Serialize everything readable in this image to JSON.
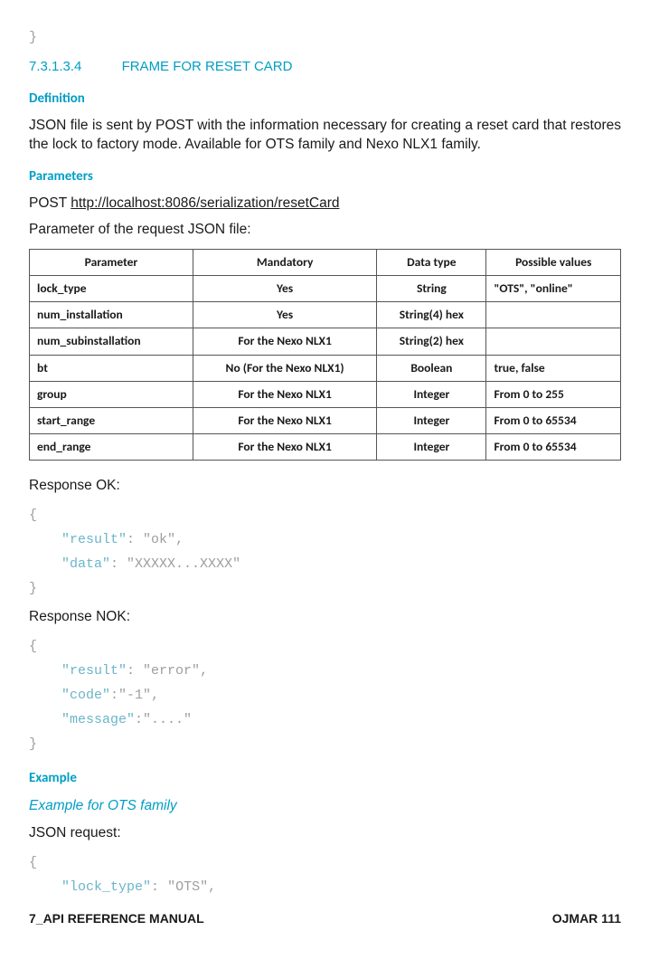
{
  "topBrace": "}",
  "section": {
    "num": "7.3.1.3.4",
    "title": "FRAME FOR RESET CARD"
  },
  "sub": {
    "definition": "Definition",
    "parameters": "Parameters",
    "example": "Example"
  },
  "definitionText": "JSON file is sent by POST with the information necessary for creating a reset card that restores the lock to factory mode. Available for OTS family and Nexo NLX1 family.",
  "postLabel": "POST ",
  "postUrl": "http://localhost:8086/serialization/resetCard",
  "paramIntro": "Parameter of the request JSON file:",
  "table": {
    "headers": [
      "Parameter",
      "Mandatory",
      "Data type",
      "Possible values"
    ],
    "rows": [
      [
        "lock_type",
        "Yes",
        "String",
        "\"OTS\", \"online\""
      ],
      [
        "num_installation",
        "Yes",
        "String(4) hex",
        ""
      ],
      [
        "num_subinstallation",
        "For the Nexo NLX1",
        "String(2) hex",
        ""
      ],
      [
        "bt",
        "No (For the Nexo NLX1)",
        "Boolean",
        "true, false"
      ],
      [
        "group",
        "For the Nexo NLX1",
        "Integer",
        "From 0 to 255"
      ],
      [
        "start_range",
        "For the Nexo NLX1",
        "Integer",
        "From 0 to 65534"
      ],
      [
        "end_range",
        "For the Nexo NLX1",
        "Integer",
        "From 0 to 65534"
      ]
    ]
  },
  "respOKLabel": "Response OK:",
  "respOK": {
    "l1": "{",
    "l2k": "\"result\"",
    "l2v": "\"ok\"",
    "l3k": "\"data\"",
    "l3v": "\"XXXXX...XXXX\"",
    "l4": "}"
  },
  "respNOKLabel": "Response NOK:",
  "respNOK": {
    "l1": "{",
    "l2k": "\"result\"",
    "l2v": "\"error\"",
    "l3k": "\"code\"",
    "l3v": "\"-1\"",
    "l4k": "\"message\"",
    "l4v": "\"....\"",
    "l5": "}"
  },
  "exampleItal": "Example for OTS family",
  "jsonReqLabel": "JSON request:",
  "jsonReq": {
    "l1": "{",
    "l2k": "\"lock_type\"",
    "l2v": "\"OTS\""
  },
  "footer": {
    "left": "7_API REFERENCE MANUAL",
    "right": "OJMAR 111"
  }
}
